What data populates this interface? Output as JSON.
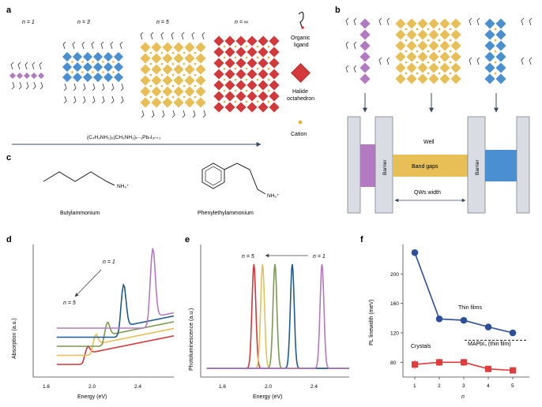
{
  "colors": {
    "purple": "#b27ac0",
    "blue": "#4a90d1",
    "gold": "#e7bf56",
    "red": "#d3383a",
    "green": "#7a9a4f",
    "darkblue": "#1f5a8e",
    "cation": "#e0b43c",
    "fblue": "#2c4f97",
    "fred": "#e23b3b",
    "barrier": "#d9dde3"
  },
  "panel_a": {
    "label": "a",
    "n_labels": [
      "n = 1",
      "n = 3",
      "n = 5",
      "n = ∞"
    ],
    "legend": {
      "ligand": [
        "Organic",
        "ligand"
      ],
      "octahedron": [
        "Halide",
        "octahedron"
      ],
      "cation": "Cation"
    },
    "formula": "(C₄H₉NH₃)₂(CH₃NH₃)ₙ₋₁PbₙI₃ₙ₊₁"
  },
  "panel_b": {
    "label": "b",
    "well": "Well",
    "band_gaps": "Band gaps",
    "barrier": "Barrier",
    "qw_width": "QWs width"
  },
  "panel_c": {
    "label": "c",
    "molecules": [
      "Butylammonium",
      "Phenylethylammonium"
    ],
    "ammonium": "NH₃⁺"
  },
  "panel_d": {
    "label": "d",
    "ylabel": "Absorption (a.u.)",
    "xlabel": "Energy (eV)",
    "xticks": [
      "1.6",
      "2.0",
      "2.4"
    ],
    "arrow_top": "n = 1",
    "arrow_bottom": "n = 5"
  },
  "panel_e": {
    "label": "e",
    "ylabel": "Photoluminescence (a.u.)",
    "xlabel": "Energy (eV)",
    "xticks": [
      "1.6",
      "2.0",
      "2.4"
    ],
    "arrow_left": "n = 5",
    "arrow_right": "n = 1"
  },
  "chart_data": [
    {
      "type": "line",
      "panel": "d",
      "xlabel": "Energy (eV)",
      "ylabel": "Absorption (a.u.)",
      "xlim": [
        1.4,
        2.6
      ],
      "series": [
        {
          "color": "#d3383a",
          "peak_eV": 1.86,
          "offset": 0.0
        },
        {
          "color": "#e7bf56",
          "peak_eV": 1.93,
          "offset": 0.1
        },
        {
          "color": "#7a9a4f",
          "peak_eV": 2.03,
          "offset": 0.2
        },
        {
          "color": "#1f5a8e",
          "peak_eV": 2.17,
          "offset": 0.3
        },
        {
          "color": "#b27ac0",
          "peak_eV": 2.42,
          "offset": 0.4
        }
      ]
    },
    {
      "type": "line",
      "panel": "e",
      "xlabel": "Energy (eV)",
      "ylabel": "Photoluminescence (a.u.)",
      "xlim": [
        1.4,
        2.6
      ],
      "series": [
        {
          "color": "#d3383a",
          "peak_eV": 1.83
        },
        {
          "color": "#e7bf56",
          "peak_eV": 1.9
        },
        {
          "color": "#7a9a4f",
          "peak_eV": 2.0
        },
        {
          "color": "#1f5a8e",
          "peak_eV": 2.14
        },
        {
          "color": "#b27ac0",
          "peak_eV": 2.38
        }
      ]
    },
    {
      "type": "scatter",
      "panel": "f",
      "xlabel": "n",
      "ylabel": "PL linewidth (meV)",
      "x": [
        1,
        2,
        3,
        4,
        5
      ],
      "xticks": [
        "1",
        "2",
        "3",
        "4",
        "5"
      ],
      "yticks": [
        "80",
        "120",
        "160",
        "200"
      ],
      "ylim": [
        60,
        240
      ],
      "series": [
        {
          "name": "Thin films",
          "color": "#2c4f97",
          "values": [
            229,
            139,
            137,
            128,
            120
          ]
        },
        {
          "name": "Crystals",
          "color": "#e23b3b",
          "values": [
            77,
            80,
            80,
            71,
            69
          ],
          "errors": [
            6,
            5,
            5,
            4,
            4
          ]
        }
      ],
      "reference": {
        "label": "MAPbI₃ (thin film)",
        "value": 110
      }
    }
  ]
}
